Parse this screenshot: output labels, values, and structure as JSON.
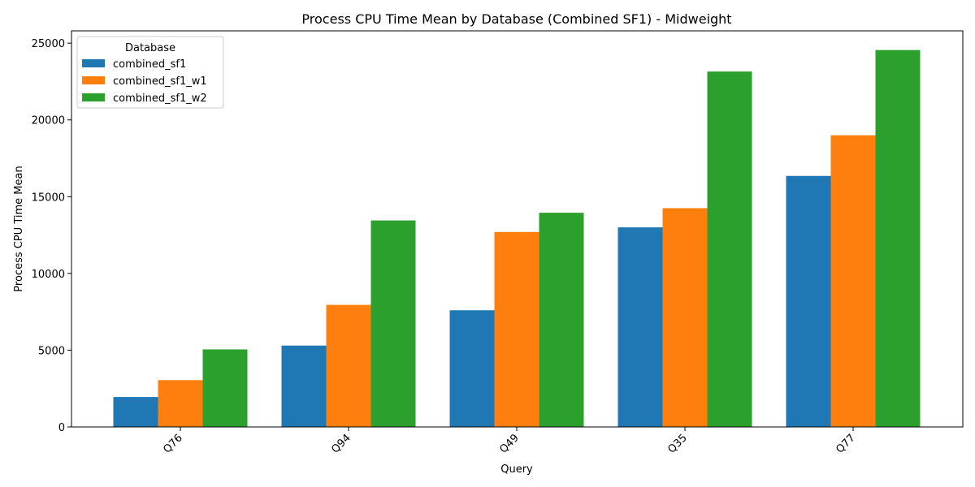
{
  "chart_data": {
    "type": "bar",
    "title": "Process CPU Time Mean by Database (Combined SF1) - Midweight",
    "xlabel": "Query",
    "ylabel": "Process CPU Time Mean",
    "categories": [
      "Q76",
      "Q94",
      "Q49",
      "Q35",
      "Q77"
    ],
    "series": [
      {
        "name": "combined_sf1",
        "color": "#1f77b4",
        "values": [
          1950,
          5300,
          7600,
          13000,
          16350
        ]
      },
      {
        "name": "combined_sf1_w1",
        "color": "#ff7f0e",
        "values": [
          3050,
          7950,
          12700,
          14250,
          19000
        ]
      },
      {
        "name": "combined_sf1_w2",
        "color": "#2ca02c",
        "values": [
          5050,
          13450,
          13950,
          23150,
          24550
        ]
      }
    ],
    "ylim": [
      0,
      25800
    ],
    "yticks": [
      0,
      5000,
      10000,
      15000,
      20000,
      25000
    ],
    "legend": {
      "title": "Database",
      "placement": "top-left"
    },
    "grid": false
  }
}
